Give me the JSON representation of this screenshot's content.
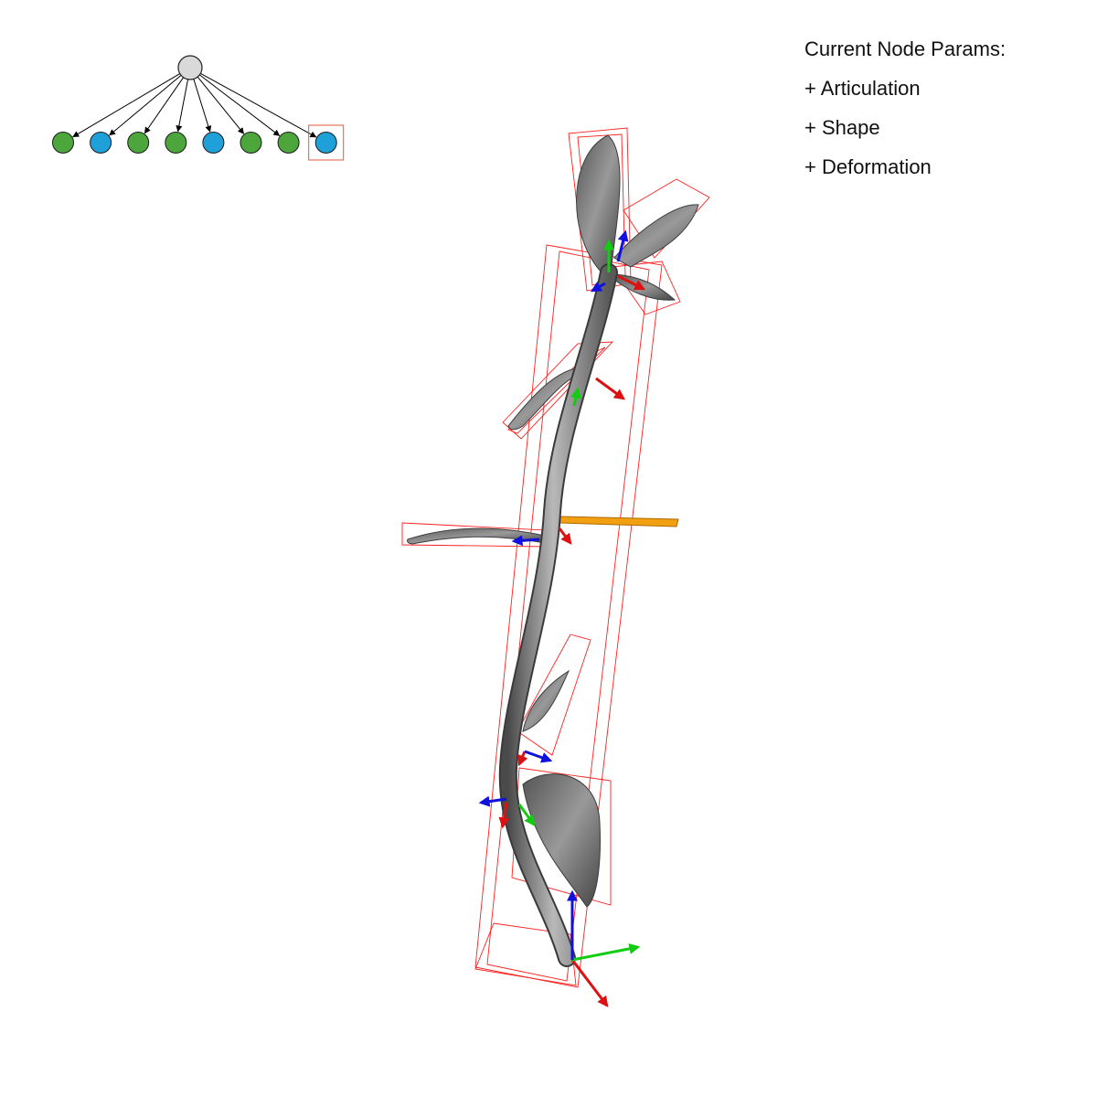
{
  "panel": {
    "title": "Current Node Params:",
    "items": [
      "+ Articulation",
      "+ Shape",
      "+ Deformation"
    ]
  },
  "tree": {
    "root": {
      "color": "#d9d9d9"
    },
    "children": [
      {
        "color": "#4ca63c",
        "selected": false
      },
      {
        "color": "#1fa0d8",
        "selected": false
      },
      {
        "color": "#4ca63c",
        "selected": false
      },
      {
        "color": "#4ca63c",
        "selected": false
      },
      {
        "color": "#1fa0d8",
        "selected": false
      },
      {
        "color": "#4ca63c",
        "selected": false
      },
      {
        "color": "#4ca63c",
        "selected": false
      },
      {
        "color": "#1fa0d8",
        "selected": true
      }
    ],
    "selection_color": "#e05a3a"
  },
  "colors": {
    "stem": "#7f7f7f",
    "leaf": "#6e6e6e",
    "bbox": "#ff2020",
    "axis_x": "#dd1111",
    "axis_y": "#11cc11",
    "axis_z": "#1111dd",
    "highlight_leaf": "#f0a010"
  }
}
